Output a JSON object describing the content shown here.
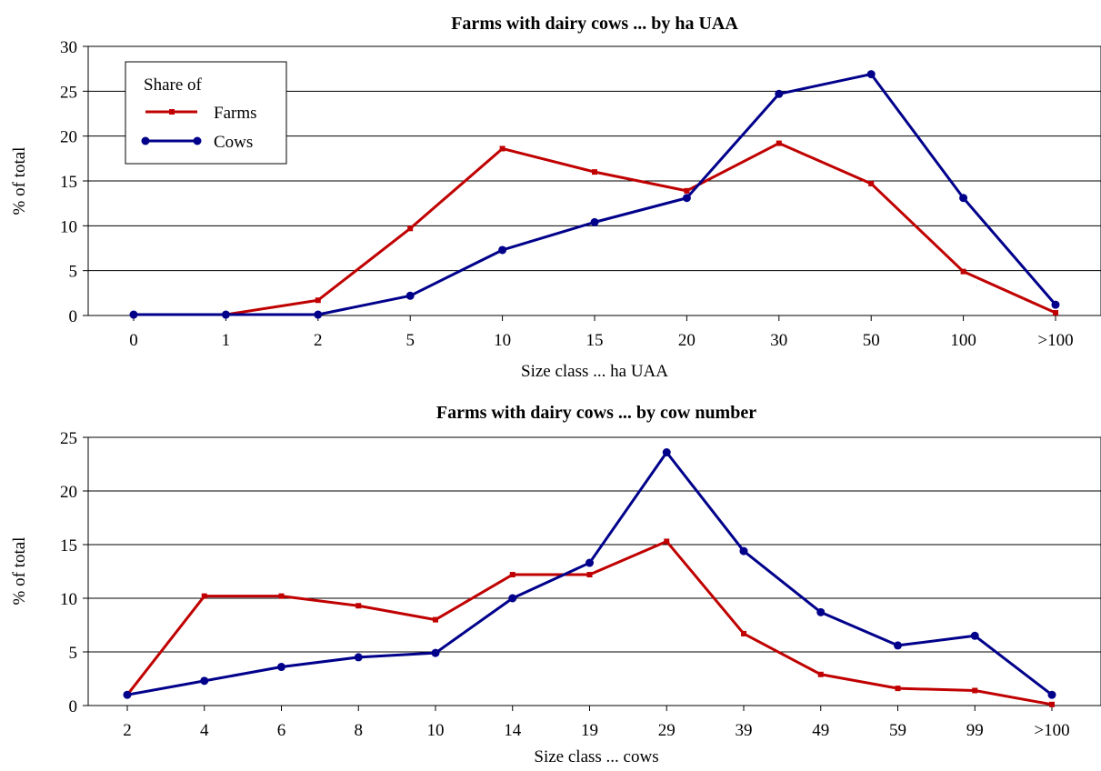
{
  "chart_data": [
    {
      "type": "line",
      "title": "Farms with dairy cows ... by ha UAA",
      "xlabel": "Size class ... ha UAA",
      "ylabel": "% of total",
      "categories": [
        "0",
        "1",
        "2",
        "5",
        "10",
        "15",
        "20",
        "30",
        "50",
        "100",
        ">100"
      ],
      "ylim": [
        0,
        30
      ],
      "yticks": [
        0,
        5,
        10,
        15,
        20,
        25,
        30
      ],
      "grid": true,
      "legend": {
        "title": "Share of",
        "placement": "top-left"
      },
      "series": [
        {
          "name": "Farms",
          "color": "#c00000",
          "marker": "square",
          "values": [
            0.1,
            0.1,
            1.7,
            9.7,
            18.6,
            16.0,
            13.9,
            19.2,
            14.7,
            4.9,
            0.3
          ]
        },
        {
          "name": "Cows",
          "color": "#00008b",
          "marker": "circle",
          "values": [
            0.1,
            0.1,
            0.1,
            2.2,
            7.3,
            10.4,
            13.1,
            24.7,
            26.9,
            13.1,
            1.2
          ]
        }
      ]
    },
    {
      "type": "line",
      "title": "Farms with dairy cows ... by cow number",
      "xlabel": "Size class ... cows",
      "ylabel": "% of total",
      "categories": [
        "2",
        "4",
        "6",
        "8",
        "10",
        "14",
        "19",
        "29",
        "39",
        "49",
        "59",
        "99",
        ">100"
      ],
      "ylim": [
        0,
        25
      ],
      "yticks": [
        0,
        5,
        10,
        15,
        20,
        25
      ],
      "grid": true,
      "series": [
        {
          "name": "Farms",
          "color": "#c00000",
          "marker": "square",
          "values": [
            1.0,
            10.2,
            10.2,
            9.3,
            8.0,
            12.2,
            12.2,
            15.3,
            6.7,
            2.9,
            1.6,
            1.4,
            0.1
          ]
        },
        {
          "name": "Cows",
          "color": "#00008b",
          "marker": "circle",
          "values": [
            1.0,
            2.3,
            3.6,
            4.5,
            4.9,
            10.0,
            13.3,
            23.6,
            14.4,
            8.7,
            5.6,
            6.5,
            1.0
          ]
        }
      ]
    }
  ]
}
